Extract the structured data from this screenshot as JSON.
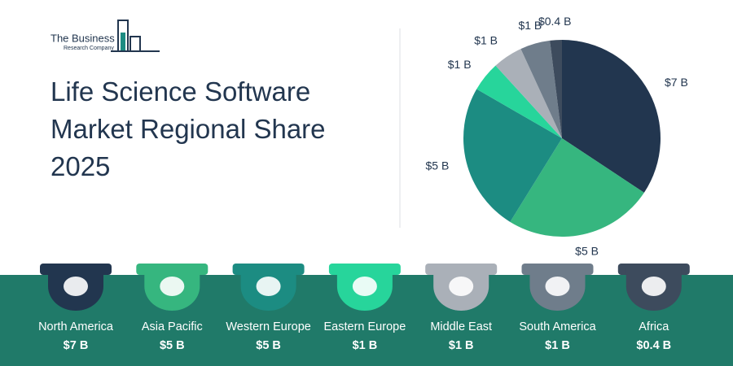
{
  "logo": {
    "line1": "The Business",
    "line2": "Research Company"
  },
  "chart_data": {
    "type": "pie",
    "title": "Life Science Software Market Regional Share 2025",
    "categories": [
      "North America",
      "Asia Pacific",
      "Western Europe",
      "Eastern Europe",
      "Middle East",
      "South America",
      "Africa"
    ],
    "values": [
      7,
      5,
      5,
      1,
      1,
      1,
      0.4
    ],
    "value_labels": [
      "$7 B",
      "$5 B",
      "$5 B",
      "$1 B",
      "$1 B",
      "$1 B",
      "$0.4 B"
    ],
    "colors": [
      "#22364f",
      "#36b67f",
      "#1c8c82",
      "#27d59b",
      "#aab0b8",
      "#6f7d8b",
      "#3d4b5d"
    ]
  }
}
